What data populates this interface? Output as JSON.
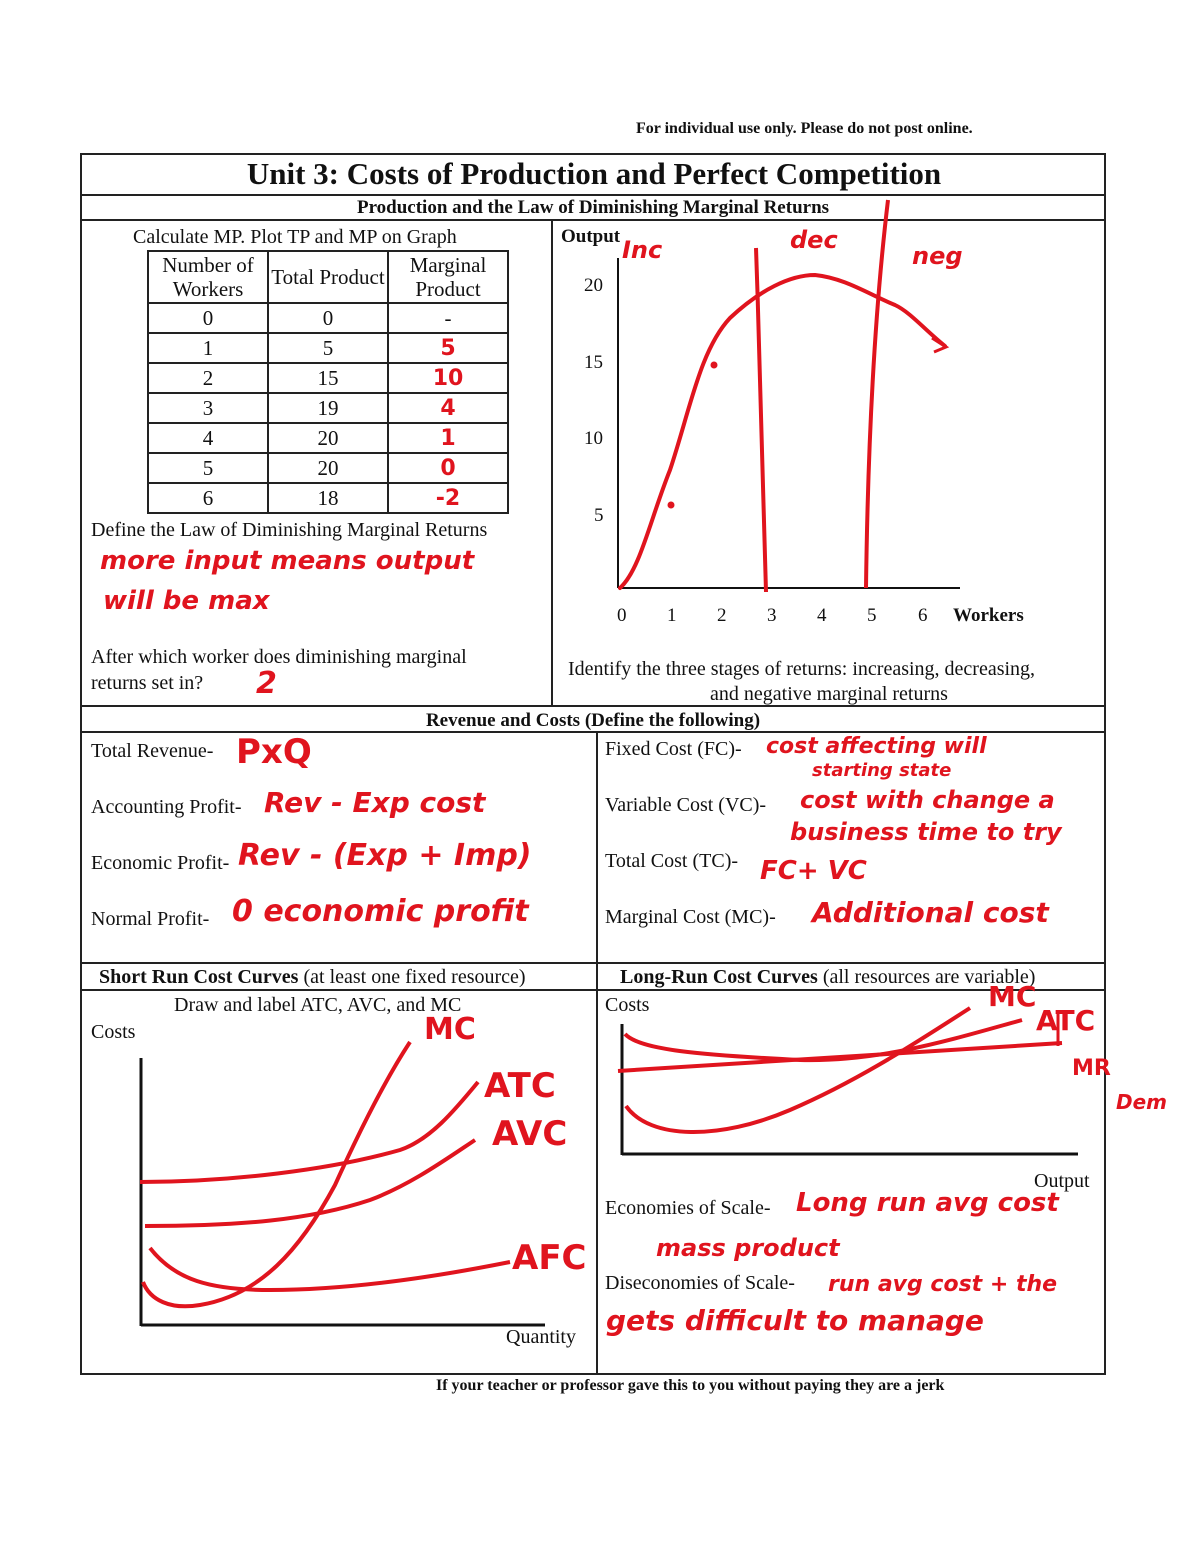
{
  "header_note": "For individual use only. Please do not post online.",
  "title": "Unit 3: Costs of Production and Perfect Competition",
  "section1": {
    "heading": "Production and the Law of Diminishing Marginal Returns",
    "instruction": "Calculate MP. Plot TP and MP on Graph",
    "table": {
      "headers": [
        "Number of Workers",
        "Total Product",
        "Marginal Product"
      ],
      "rows": [
        {
          "workers": "0",
          "tp": "0",
          "mp": "-"
        },
        {
          "workers": "1",
          "tp": "5",
          "mp": "5"
        },
        {
          "workers": "2",
          "tp": "15",
          "mp": "10"
        },
        {
          "workers": "3",
          "tp": "19",
          "mp": "4"
        },
        {
          "workers": "4",
          "tp": "20",
          "mp": "1"
        },
        {
          "workers": "5",
          "tp": "20",
          "mp": "0"
        },
        {
          "workers": "6",
          "tp": "18",
          "mp": "-2"
        }
      ]
    },
    "define_prompt": "Define the Law of Diminishing Marginal Returns",
    "define_answer_1": "more input means output",
    "define_answer_2": "will be max",
    "which_worker_prompt_1": "After which worker does diminishing marginal",
    "which_worker_prompt_2": "returns set in?",
    "which_worker_answer": "2",
    "graph": {
      "y_label": "Output",
      "x_label": "Workers",
      "y_ticks": [
        "20",
        "15",
        "10",
        "5"
      ],
      "x_ticks": [
        "0",
        "1",
        "2",
        "3",
        "4",
        "5",
        "6"
      ],
      "stage_labels": [
        "Inc",
        "dec",
        "neg"
      ]
    },
    "stages_prompt_1": "Identify the three stages of returns: increasing, decreasing,",
    "stages_prompt_2": "and negative marginal returns"
  },
  "section2": {
    "heading": "Revenue and Costs (Define the following)",
    "left": [
      {
        "label": "Total Revenue-",
        "answer": "PxQ"
      },
      {
        "label": "Accounting Profit-",
        "answer": "Rev - Exp cost"
      },
      {
        "label": "Economic Profit-",
        "answer": "Rev - (Exp + Imp)"
      },
      {
        "label": "Normal Profit-",
        "answer": "0 economic profit"
      }
    ],
    "right": [
      {
        "label": "Fixed Cost (FC)-",
        "answer": "cost affecting will",
        "answer2": "starting state"
      },
      {
        "label": "Variable Cost (VC)-",
        "answer": "cost with change a",
        "answer2": "business time to try"
      },
      {
        "label": "Total Cost (TC)-",
        "answer": "FC+ VC"
      },
      {
        "label": "Marginal Cost (MC)-",
        "answer": "Additional cost"
      }
    ]
  },
  "section3": {
    "left_heading_bold": "Short Run Cost Curves",
    "left_heading_rest": " (at least one fixed resource)",
    "left_instruction": "Draw and label ATC, AVC, and MC",
    "left_y_label": "Costs",
    "left_x_label": "Quantity",
    "left_curve_labels": [
      "MC",
      "ATC",
      "AVC",
      "AFC"
    ],
    "right_heading_bold": "Long-Run Cost Curves",
    "right_heading_rest": " (all resources are variable)",
    "right_y_label": "Costs",
    "right_x_label": "Output",
    "right_curve_labels": [
      "MC",
      "ATC",
      "MR",
      "Dem"
    ],
    "economies_label": "Economies of Scale-",
    "economies_answer_1": "Long run avg cost",
    "economies_answer_2": "mass product",
    "diseconomies_label": "Diseconomies of Scale-",
    "diseconomies_answer_1": "run avg cost + the",
    "diseconomies_answer_2": "gets difficult to manage"
  },
  "footer_note": "If your teacher or professor gave this to you without paying they are a jerk",
  "colors": {
    "ink": "#111111",
    "pen": "#e0141e"
  }
}
